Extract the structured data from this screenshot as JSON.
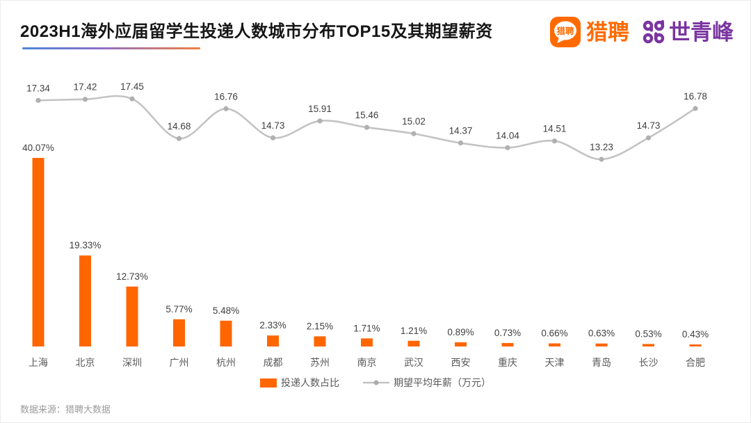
{
  "header": {
    "title": "2023H1海外应届留学生投递人数城市分布TOP15及其期望薪资",
    "liepin_icon_text": "猎聘",
    "liepin_label": "猎聘",
    "shiqingfeng_label": "世青峰"
  },
  "chart_data": {
    "type": "combo_bar_line",
    "title": "2023H1海外应届留学生投递人数城市分布TOP15及其期望薪资",
    "categories": [
      "上海",
      "北京",
      "深圳",
      "广州",
      "杭州",
      "成都",
      "苏州",
      "南京",
      "武汉",
      "西安",
      "重庆",
      "天津",
      "青岛",
      "长沙",
      "合肥"
    ],
    "series": [
      {
        "name": "投递人数占比",
        "type": "bar",
        "unit": "%",
        "values": [
          40.07,
          19.33,
          12.73,
          5.77,
          5.48,
          2.33,
          2.15,
          1.71,
          1.21,
          0.89,
          0.73,
          0.66,
          0.63,
          0.53,
          0.43
        ]
      },
      {
        "name": "期望平均年薪（万元）",
        "type": "line",
        "unit": "万元",
        "values": [
          17.34,
          17.42,
          17.45,
          14.68,
          16.76,
          14.73,
          15.91,
          15.46,
          15.02,
          14.37,
          14.04,
          14.51,
          13.23,
          14.73,
          16.78
        ]
      }
    ],
    "legend_position": "bottom",
    "grid": false,
    "axes_visible": false,
    "value_labels_visible": true,
    "colors": {
      "bar": "#FF6600",
      "line": "#C3C3C3",
      "point": "#B0B0B0",
      "value_label": "#3F3F3F",
      "category_label": "#595959"
    }
  },
  "footer": {
    "source": "数据来源：猎聘大数据"
  },
  "brand": {
    "accent_orange": "#FF6A00",
    "accent_purple": "#7A35A0"
  }
}
